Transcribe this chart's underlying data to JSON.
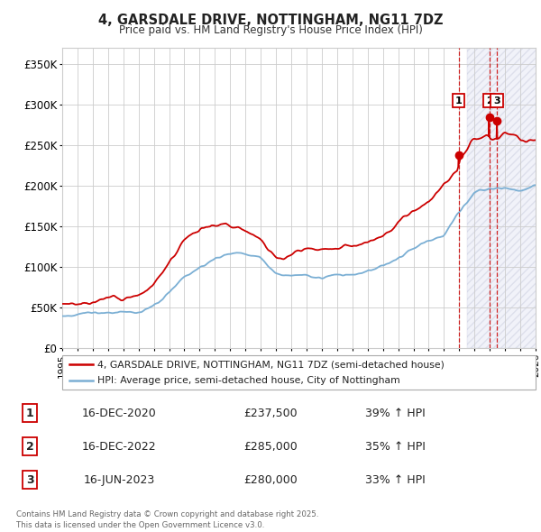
{
  "title_line1": "4, GARSDALE DRIVE, NOTTINGHAM, NG11 7DZ",
  "title_line2": "Price paid vs. HM Land Registry's House Price Index (HPI)",
  "xlim_start": 1995.0,
  "xlim_end": 2026.0,
  "ylim_min": 0,
  "ylim_max": 370000,
  "yticks": [
    0,
    50000,
    100000,
    150000,
    200000,
    250000,
    300000,
    350000
  ],
  "ytick_labels": [
    "£0",
    "£50K",
    "£100K",
    "£150K",
    "£200K",
    "£250K",
    "£300K",
    "£350K"
  ],
  "red_color": "#cc0000",
  "blue_color": "#7bafd4",
  "shade_color": "#e8eaf6",
  "shade_start": 2021.5,
  "purchase_dates": [
    2020.96,
    2022.96,
    2023.46
  ],
  "purchase_prices": [
    237500,
    285000,
    280000
  ],
  "purchase_labels": [
    "1",
    "2",
    "3"
  ],
  "red_key_years": [
    1995,
    1996,
    1997,
    1998,
    1999,
    2000,
    2001,
    2002,
    2003,
    2004,
    2005,
    2006,
    2007,
    2008,
    2009,
    2010,
    2011,
    2012,
    2013,
    2014,
    2015,
    2016,
    2017,
    2018,
    2019,
    2020,
    2020.96,
    2021,
    2022,
    2022.96,
    2023.46,
    2024,
    2025,
    2026
  ],
  "red_key_vals": [
    55000,
    58000,
    60000,
    62000,
    65000,
    70000,
    85000,
    110000,
    140000,
    155000,
    165000,
    168000,
    165000,
    155000,
    138000,
    140000,
    143000,
    140000,
    148000,
    152000,
    158000,
    168000,
    185000,
    200000,
    210000,
    225000,
    237500,
    250000,
    275000,
    285000,
    280000,
    288000,
    278000,
    280000
  ],
  "blue_key_years": [
    1995,
    1996,
    1997,
    1998,
    1999,
    2000,
    2001,
    2002,
    2003,
    2004,
    2005,
    2006,
    2007,
    2008,
    2009,
    2010,
    2011,
    2012,
    2013,
    2014,
    2015,
    2016,
    2017,
    2018,
    2019,
    2020,
    2021,
    2022,
    2022.96,
    2023.46,
    2024,
    2025,
    2026
  ],
  "blue_key_vals": [
    40000,
    40000,
    41000,
    42000,
    43000,
    46000,
    52000,
    65000,
    85000,
    100000,
    110000,
    115000,
    118000,
    112000,
    96000,
    97000,
    99000,
    96000,
    100000,
    103000,
    107000,
    115000,
    128000,
    140000,
    147000,
    152000,
    185000,
    205000,
    210000,
    210000,
    210000,
    205000,
    210000
  ],
  "legend_red": "4, GARSDALE DRIVE, NOTTINGHAM, NG11 7DZ (semi-detached house)",
  "legend_blue": "HPI: Average price, semi-detached house, City of Nottingham",
  "table_data": [
    [
      "1",
      "16-DEC-2020",
      "£237,500",
      "39% ↑ HPI"
    ],
    [
      "2",
      "16-DEC-2022",
      "£285,000",
      "35% ↑ HPI"
    ],
    [
      "3",
      "16-JUN-2023",
      "£280,000",
      "33% ↑ HPI"
    ]
  ],
  "footer_text": "Contains HM Land Registry data © Crown copyright and database right 2025.\nThis data is licensed under the Open Government Licence v3.0.",
  "background_color": "#ffffff",
  "grid_color": "#cccccc"
}
